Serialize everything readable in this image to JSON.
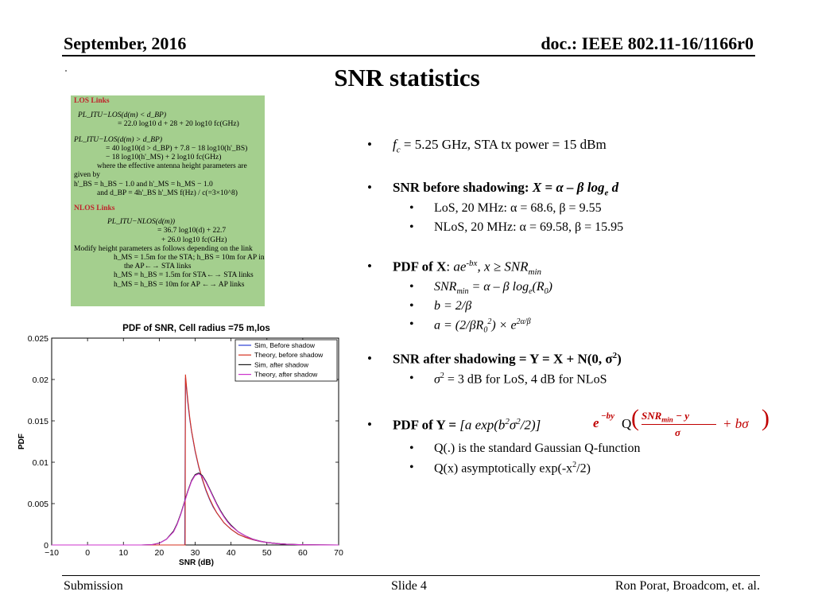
{
  "header": {
    "date": "September, 2016",
    "doc": "doc.: IEEE 802.11-16/1166r0",
    "title": "SNR statistics"
  },
  "footer": {
    "left": "Submission",
    "middle": "Slide 4",
    "right": "Ron Porat, Broadcom, et. al."
  },
  "formula_box": {
    "los_heading": "LOS Links",
    "los_lines": [
      "PL_ITU−LOS(d(m) < d_BP)",
      "= 22.0 log10 d + 28 + 20 log10 fc(GHz)",
      "PL_ITU−LOS(d(m) > d_BP)",
      "= 40 log10(d > d_BP) + 7.8 − 18 log10(h'_BS)",
      "− 18 log10(h'_MS) + 2 log10 fc(GHz)",
      "where the effective antenna height parameters are",
      "given by",
      "h'_BS = h_BS − 1.0 and h'_MS = h_MS − 1.0",
      "and d_BP = 4h'_BS h'_MS f(Hz) / c(=3×10^8)"
    ],
    "nlos_heading": "NLOS Links",
    "nlos_lines": [
      "PL_ITU−NLOS(d(m))",
      "= 36.7 log10(d) + 22.7",
      "+ 26.0 log10 fc(GHz)",
      "Modify height parameters as follows depending on the link",
      "h_MS = 1.5m for the STA; h_BS = 10m for AP in",
      "the AP←→ STA links",
      "h_MS = h_BS = 1.5m for STA←→ STA links",
      "h_MS = h_BS = 10m for AP ←→ AP links"
    ]
  },
  "bullets": {
    "fc_var": "f",
    "fc_sub": "c",
    "fc_text": " = 5.25 GHz, STA tx power = 15 dBm",
    "snr_before_label": "SNR before shadowing: ",
    "snr_before_eq": "X = α – β log",
    "snr_before_sub": "e",
    "snr_before_end": " d",
    "los_params": "LoS, 20 MHz: α = 68.6, β = 9.55",
    "nlos_params": "NLoS, 20 MHz: α = 69.58, β = 15.95",
    "pdfx_label": "PDF of X",
    "pdfx_colon": ": ",
    "pdfx_a": "ae",
    "pdfx_sup": "-bx",
    "pdfx_cond": ", x ≥ SNR",
    "pdfx_sub": "min",
    "snrmin_a": "SNR",
    "snrmin_sub": "min",
    "snrmin_b": " = α – β log",
    "snrmin_sub2": "e",
    "snrmin_c": "(R",
    "snrmin_sub3": "0",
    "snrmin_d": ")",
    "b_eq": "b = 2/β",
    "a_eq_a": "a = (2/βR",
    "a_eq_sub": "0",
    "a_eq_sup": "2",
    "a_eq_b": ") × e",
    "a_eq_sup2": "2α/β",
    "snr_after": "SNR after shadowing = Y = X + N(0, σ",
    "snr_after_sup": "2",
    "snr_after_end": ")",
    "sigma_a": "σ",
    "sigma_sup": "2",
    "sigma_b": " = 3 dB for LoS, 4 dB for NLoS",
    "pdfy_label": "PDF of Y = ",
    "pdfy_a": "[a exp(b",
    "pdfy_sup1": "2",
    "pdfy_b": "σ",
    "pdfy_sup2": "2",
    "pdfy_c": "/2)] ",
    "pdfy_exp_base": "e",
    "pdfy_exp": "−by",
    "pdfy_q": "Q",
    "pdfy_num": "SNR",
    "pdfy_num_sub": "min",
    "pdfy_num_end": " − y",
    "pdfy_den": "σ",
    "pdfy_plus": "+ bσ",
    "q_def": "Q(.) is the standard Gaussian Q-function",
    "q_asym_a": "Q(x) asymptotically exp(-x",
    "q_asym_sup": "2",
    "q_asym_b": "/2)"
  },
  "chart_data": {
    "type": "line",
    "title": "PDF of SNR, Cell radius =75 m,los",
    "xlabel": "SNR (dB)",
    "ylabel": "PDF",
    "xlim": [
      -10,
      70
    ],
    "ylim": [
      0,
      0.025
    ],
    "xticks": [
      -10,
      0,
      10,
      20,
      30,
      40,
      50,
      60,
      70
    ],
    "xtick_labels": [
      "−10",
      "0",
      "10",
      "20",
      "30",
      "40",
      "50",
      "60",
      "70"
    ],
    "yticks": [
      0,
      0.005,
      0.01,
      0.015,
      0.02,
      0.025
    ],
    "ytick_labels": [
      "0",
      "0.005",
      "0.01",
      "0.015",
      "0.02",
      "0.025"
    ],
    "legend_position": "top-right",
    "series": [
      {
        "name": "Sim, Before shadow",
        "color": "#2a3fd6",
        "x": [
          -10,
          27.1,
          27.3,
          27.6,
          28.0,
          28.5,
          29.0,
          30.0,
          31.0,
          32.0,
          33.0,
          34.0,
          35.0,
          36.0,
          37.0,
          38.0,
          39.0,
          40.0,
          42.0,
          44.0,
          46.0,
          48.0,
          50.0,
          53.0,
          56.0,
          60.0,
          70.0
        ],
        "y": [
          0,
          0,
          0.0202,
          0.0188,
          0.017,
          0.0152,
          0.0137,
          0.0113,
          0.0094,
          0.0079,
          0.0066,
          0.0055,
          0.0046,
          0.0039,
          0.0033,
          0.0027,
          0.0023,
          0.0019,
          0.0013,
          0.00092,
          0.00064,
          0.00044,
          0.0003,
          0.00016,
          8e-05,
          2e-05,
          0
        ]
      },
      {
        "name": "Theory, before shadow",
        "color": "#d6301f",
        "x": [
          -10,
          27.2,
          27.3,
          27.6,
          28.0,
          28.5,
          29.0,
          30.0,
          31.0,
          32.0,
          33.0,
          34.0,
          35.0,
          36.0,
          37.0,
          38.0,
          39.0,
          40.0,
          42.0,
          44.0,
          46.0,
          48.0,
          50.0,
          53.0,
          56.0,
          60.0,
          70.0
        ],
        "y": [
          0,
          0,
          0.0206,
          0.0191,
          0.0173,
          0.0154,
          0.0138,
          0.0114,
          0.0095,
          0.008,
          0.0067,
          0.0056,
          0.0047,
          0.0039,
          0.0033,
          0.0027,
          0.0023,
          0.0019,
          0.0013,
          0.00093,
          0.00065,
          0.00045,
          0.0003,
          0.00016,
          8e-05,
          2e-05,
          0
        ]
      },
      {
        "name": "Sim, after shadow",
        "color": "#1a1a1a",
        "x": [
          -10,
          15,
          18,
          20,
          22,
          24,
          25,
          26,
          27,
          27.5,
          28,
          29,
          30,
          31,
          32,
          33,
          34,
          35,
          36,
          37,
          38,
          39,
          40,
          42,
          44,
          46,
          48,
          50,
          53,
          56,
          60,
          65,
          70
        ],
        "y": [
          0,
          0,
          5e-05,
          0.00022,
          0.0007,
          0.0017,
          0.0026,
          0.0038,
          0.0052,
          0.0059,
          0.0066,
          0.0078,
          0.0085,
          0.0087,
          0.0084,
          0.0077,
          0.0068,
          0.0059,
          0.005,
          0.0042,
          0.0035,
          0.0029,
          0.0024,
          0.0016,
          0.0011,
          0.00072,
          0.00048,
          0.00031,
          0.00016,
          8e-05,
          3e-05,
          1e-05,
          0
        ]
      },
      {
        "name": "Theory, after shadow",
        "color": "#cc33cc",
        "x": [
          -10,
          15,
          18,
          20,
          22,
          24,
          25,
          26,
          27,
          27.5,
          28,
          29,
          30,
          31,
          32,
          33,
          34,
          35,
          36,
          37,
          38,
          39,
          40,
          42,
          44,
          46,
          48,
          50,
          53,
          56,
          60,
          65,
          70
        ],
        "y": [
          0,
          0,
          4e-05,
          0.0002,
          0.00068,
          0.0016,
          0.0025,
          0.0037,
          0.0051,
          0.0058,
          0.0065,
          0.0077,
          0.0084,
          0.0086,
          0.0083,
          0.0076,
          0.0067,
          0.0058,
          0.0049,
          0.0041,
          0.0034,
          0.0028,
          0.0023,
          0.0016,
          0.0011,
          0.0007,
          0.00047,
          0.0003,
          0.00015,
          8e-05,
          3e-05,
          1e-05,
          0
        ]
      }
    ]
  }
}
